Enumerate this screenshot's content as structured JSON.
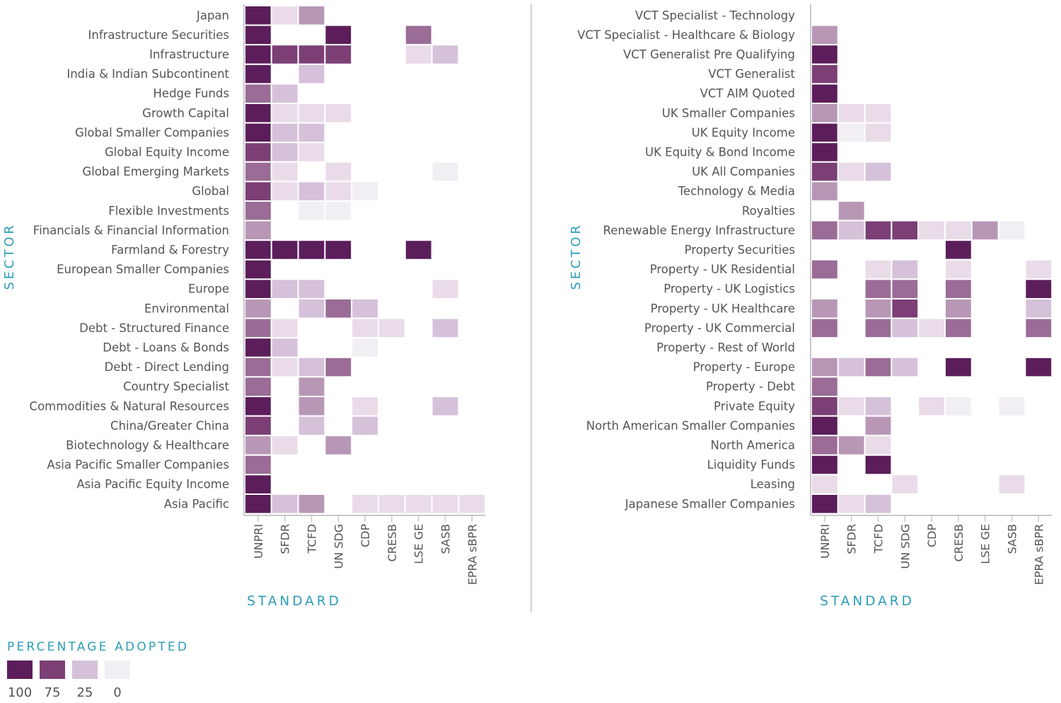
{
  "colors": {
    "scale": [
      "#f1eff3",
      "#e9dce8",
      "#d5c1d9",
      "#b897b6",
      "#9a6c96",
      "#7b3f76",
      "#5b1e5b"
    ],
    "accent": "#2a9db8",
    "axis": "#c8c8c8",
    "label": "#555555",
    "cell_border": "#ffffff"
  },
  "legend": {
    "title": "PERCENTAGE ADOPTED",
    "levels": [
      {
        "label": "100",
        "value": 100
      },
      {
        "label": "75",
        "value": 75
      },
      {
        "label": "25",
        "value": 25
      },
      {
        "label": "0",
        "value": 0
      }
    ]
  },
  "chart_data": [
    {
      "type": "heatmap",
      "ylabel": "SECTOR",
      "xlabel": "STANDARD",
      "columns": [
        "UNPRI",
        "SFDR",
        "TCFD",
        "UN SDG",
        "CDP",
        "CRESB",
        "LSE GE",
        "SASB",
        "EPRA sBPR"
      ],
      "rows": [
        "Japan",
        "Infrastructure Securities",
        "Infrastructure",
        "India & Indian Subcontinent",
        "Hedge Funds",
        "Growth Capital",
        "Global Smaller Companies",
        "Global Equity Income",
        "Global Emerging Markets",
        "Global",
        "Flexible Investments",
        "Financials & Financial Information",
        "Farmland & Forestry",
        "European Smaller Companies",
        "Europe",
        "Environmental",
        "Debt - Structured Finance",
        "Debt - Loans & Bonds",
        "Debt - Direct Lending",
        "Country Specialist",
        "Commodities & Natural Resources",
        "China/Greater China",
        "Biotechnology & Healthcare",
        "Asia Pacific Smaller Companies",
        "Asia Pacific Equity Income",
        "Asia Pacific"
      ],
      "values": [
        [
          100,
          15,
          45,
          null,
          null,
          null,
          null,
          null,
          null
        ],
        [
          100,
          null,
          null,
          100,
          null,
          null,
          65,
          null,
          null
        ],
        [
          100,
          75,
          75,
          75,
          null,
          null,
          15,
          25,
          null
        ],
        [
          100,
          null,
          25,
          null,
          null,
          null,
          null,
          null,
          null
        ],
        [
          65,
          25,
          null,
          null,
          null,
          null,
          null,
          null,
          null
        ],
        [
          100,
          15,
          15,
          15,
          null,
          null,
          null,
          null,
          null
        ],
        [
          100,
          25,
          25,
          null,
          null,
          null,
          null,
          null,
          null
        ],
        [
          85,
          25,
          15,
          null,
          null,
          null,
          null,
          null,
          null
        ],
        [
          65,
          15,
          null,
          15,
          null,
          null,
          null,
          5,
          null
        ],
        [
          85,
          15,
          25,
          15,
          5,
          null,
          null,
          null,
          null
        ],
        [
          65,
          null,
          5,
          5,
          null,
          null,
          null,
          null,
          null
        ],
        [
          45,
          null,
          null,
          null,
          null,
          null,
          null,
          null,
          null
        ],
        [
          100,
          100,
          100,
          100,
          null,
          null,
          100,
          null,
          null
        ],
        [
          100,
          null,
          null,
          null,
          null,
          null,
          null,
          null,
          null
        ],
        [
          100,
          25,
          25,
          null,
          null,
          null,
          null,
          15,
          null
        ],
        [
          45,
          null,
          25,
          65,
          25,
          null,
          null,
          null,
          null
        ],
        [
          65,
          15,
          null,
          null,
          15,
          15,
          null,
          25,
          null
        ],
        [
          100,
          25,
          null,
          null,
          5,
          null,
          null,
          null,
          null
        ],
        [
          65,
          15,
          25,
          65,
          null,
          null,
          null,
          null,
          null
        ],
        [
          65,
          null,
          45,
          null,
          null,
          null,
          null,
          null,
          null
        ],
        [
          100,
          null,
          45,
          null,
          15,
          null,
          null,
          25,
          null
        ],
        [
          85,
          null,
          25,
          null,
          25,
          null,
          null,
          null,
          null
        ],
        [
          45,
          15,
          null,
          45,
          null,
          null,
          null,
          null,
          null
        ],
        [
          65,
          null,
          null,
          null,
          null,
          null,
          null,
          null,
          null
        ],
        [
          100,
          null,
          null,
          null,
          null,
          null,
          null,
          null,
          null
        ],
        [
          100,
          25,
          45,
          null,
          15,
          15,
          15,
          15,
          15
        ]
      ]
    },
    {
      "type": "heatmap",
      "ylabel": "SECTOR",
      "xlabel": "STANDARD",
      "columns": [
        "UNPRI",
        "SFDR",
        "TCFD",
        "UN SDG",
        "CDP",
        "CRESB",
        "LSE GE",
        "SASB",
        "EPRA sBPR"
      ],
      "rows": [
        "VCT Specialist - Technology",
        "VCT Specialist - Healthcare & Biology",
        "VCT Generalist Pre Qualifying",
        "VCT Generalist",
        "VCT AIM Quoted",
        "UK Smaller Companies",
        "UK Equity Income",
        "UK Equity & Bond Income",
        "UK All Companies",
        "Technology & Media",
        "Royalties",
        "Renewable Energy Infrastructure",
        "Property Securities",
        "Property - UK Residential",
        "Property - UK Logistics",
        "Property - UK Healthcare",
        "Property - UK Commercial",
        "Property - Rest of World",
        "Property - Europe",
        "Property - Debt",
        "Private Equity",
        "North American Smaller Companies",
        "North America",
        "Liquidity Funds",
        "Leasing",
        "Japanese Smaller Companies"
      ],
      "values": [
        [
          null,
          null,
          null,
          null,
          null,
          null,
          null,
          null,
          null
        ],
        [
          45,
          null,
          null,
          null,
          null,
          null,
          null,
          null,
          null
        ],
        [
          100,
          null,
          null,
          null,
          null,
          null,
          null,
          null,
          null
        ],
        [
          85,
          null,
          null,
          null,
          null,
          null,
          null,
          null,
          null
        ],
        [
          100,
          null,
          null,
          null,
          null,
          null,
          null,
          null,
          null
        ],
        [
          45,
          15,
          15,
          null,
          null,
          null,
          null,
          null,
          null
        ],
        [
          100,
          5,
          15,
          null,
          null,
          null,
          null,
          null,
          null
        ],
        [
          100,
          null,
          null,
          null,
          null,
          null,
          null,
          null,
          null
        ],
        [
          85,
          15,
          25,
          null,
          null,
          null,
          null,
          null,
          null
        ],
        [
          45,
          null,
          null,
          null,
          null,
          null,
          null,
          null,
          null
        ],
        [
          null,
          45,
          null,
          null,
          null,
          null,
          null,
          null,
          null
        ],
        [
          65,
          25,
          85,
          85,
          15,
          15,
          45,
          5,
          null
        ],
        [
          null,
          null,
          null,
          null,
          null,
          100,
          null,
          null,
          null
        ],
        [
          65,
          null,
          15,
          25,
          null,
          15,
          null,
          null,
          15
        ],
        [
          null,
          null,
          65,
          65,
          null,
          65,
          null,
          null,
          100
        ],
        [
          45,
          null,
          45,
          85,
          null,
          45,
          null,
          null,
          25
        ],
        [
          65,
          null,
          65,
          25,
          15,
          65,
          null,
          null,
          65
        ],
        [
          null,
          null,
          null,
          null,
          null,
          null,
          null,
          null,
          null
        ],
        [
          45,
          25,
          65,
          25,
          null,
          100,
          null,
          null,
          100
        ],
        [
          65,
          null,
          null,
          null,
          null,
          null,
          null,
          null,
          null
        ],
        [
          85,
          15,
          25,
          null,
          15,
          5,
          null,
          5,
          null
        ],
        [
          100,
          null,
          45,
          null,
          null,
          null,
          null,
          null,
          null
        ],
        [
          65,
          45,
          15,
          null,
          null,
          null,
          null,
          null,
          null
        ],
        [
          100,
          null,
          100,
          null,
          null,
          null,
          null,
          null,
          null
        ],
        [
          15,
          null,
          null,
          15,
          null,
          null,
          null,
          15,
          null
        ],
        [
          100,
          15,
          25,
          null,
          null,
          null,
          null,
          null,
          null
        ]
      ]
    }
  ]
}
